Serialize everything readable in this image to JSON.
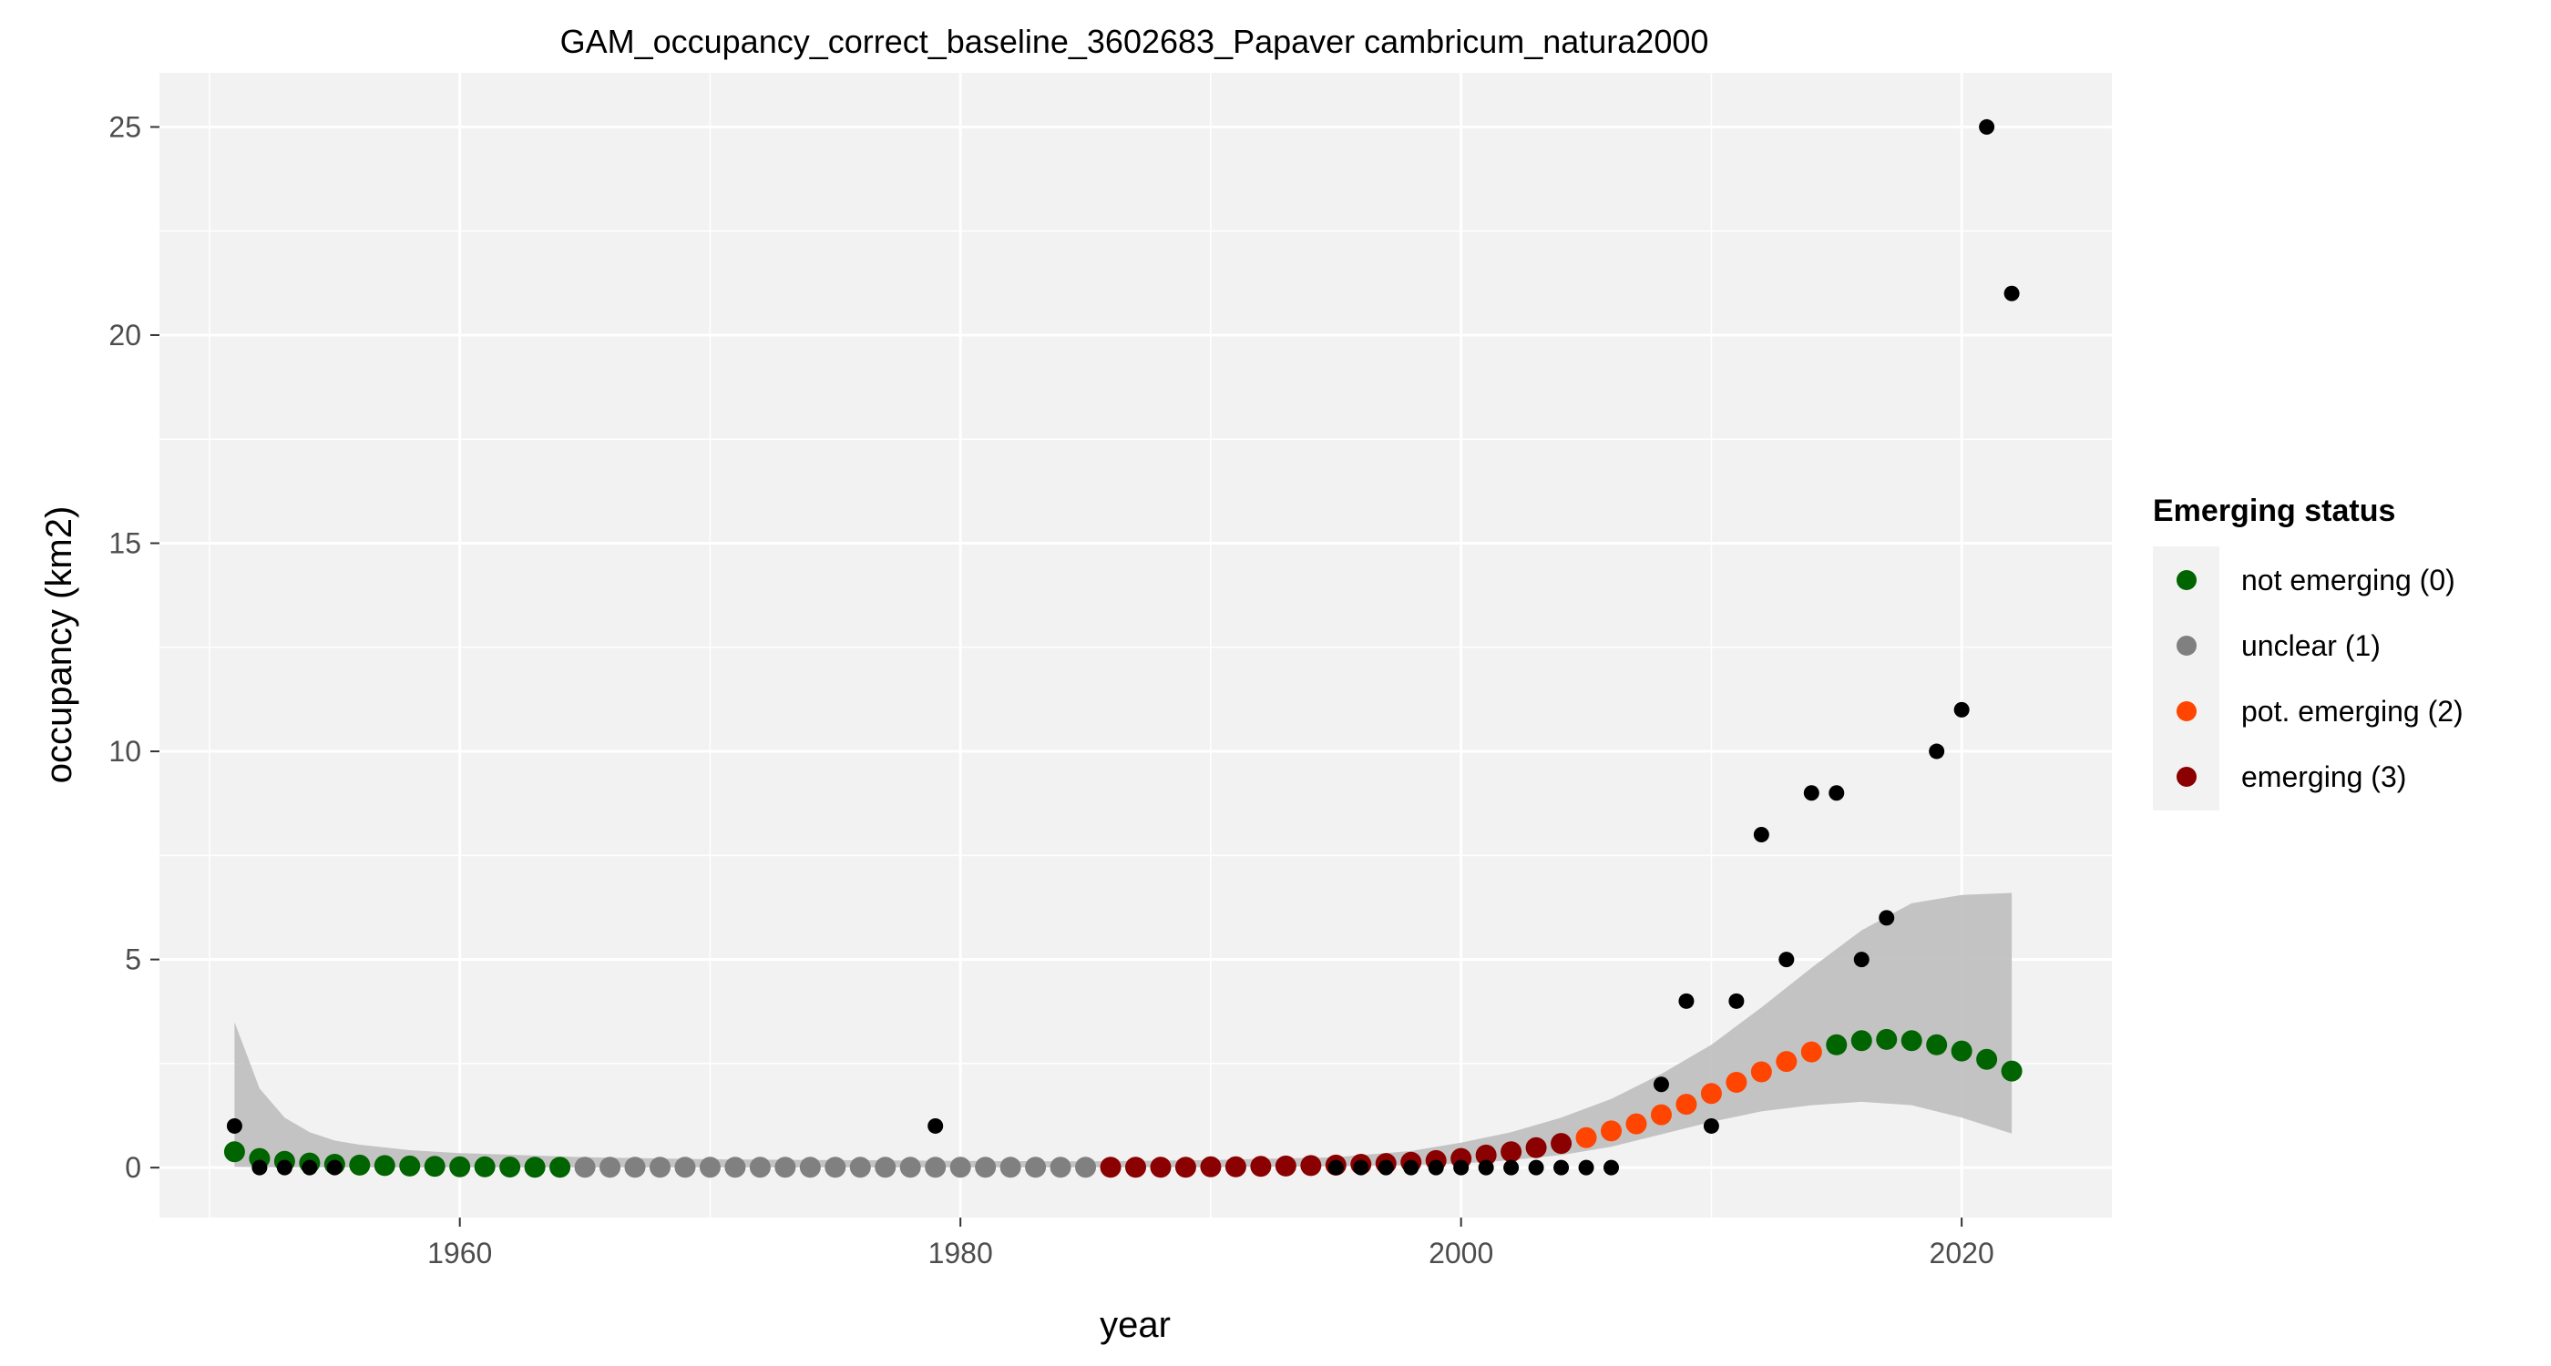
{
  "chart_data": {
    "type": "scatter",
    "title": "GAM_occupancy_correct_baseline_3602683_Papaver cambricum_natura2000",
    "xlabel": "year",
    "ylabel": "occupancy (km2)",
    "xlim": [
      1948,
      2026
    ],
    "ylim": [
      -1.2,
      26.3
    ],
    "x_ticks": [
      1960,
      1980,
      2000,
      2020
    ],
    "y_ticks": [
      0,
      5,
      10,
      15,
      20,
      25
    ],
    "grid": true,
    "legend": {
      "title": "Emerging status",
      "placement": "right",
      "entries": [
        {
          "label": "not emerging (0)",
          "color": "#006400"
        },
        {
          "label": "unclear (1)",
          "color": "#808080"
        },
        {
          "label": "pot. emerging (2)",
          "color": "#FF4500"
        },
        {
          "label": "emerging (3)",
          "color": "#8B0000"
        }
      ]
    },
    "observed": {
      "color": "#000000",
      "points": [
        [
          1951,
          1
        ],
        [
          1952,
          0
        ],
        [
          1953,
          0
        ],
        [
          1954,
          0
        ],
        [
          1955,
          0
        ],
        [
          1979,
          1
        ],
        [
          1995,
          0
        ],
        [
          1996,
          0
        ],
        [
          1997,
          0
        ],
        [
          1998,
          0
        ],
        [
          1999,
          0
        ],
        [
          2000,
          0
        ],
        [
          2001,
          0
        ],
        [
          2002,
          0
        ],
        [
          2003,
          0
        ],
        [
          2004,
          0
        ],
        [
          2005,
          0
        ],
        [
          2006,
          0
        ],
        [
          2008,
          2
        ],
        [
          2009,
          4
        ],
        [
          2010,
          1
        ],
        [
          2011,
          4
        ],
        [
          2012,
          8
        ],
        [
          2013,
          5
        ],
        [
          2014,
          9
        ],
        [
          2015,
          9
        ],
        [
          2016,
          5
        ],
        [
          2017,
          6
        ],
        [
          2019,
          10
        ],
        [
          2020,
          11
        ],
        [
          2021,
          25
        ],
        [
          2022,
          21
        ]
      ]
    },
    "fitted": {
      "years": [
        1951,
        1952,
        1953,
        1954,
        1955,
        1956,
        1957,
        1958,
        1959,
        1960,
        1961,
        1962,
        1963,
        1964,
        1965,
        1966,
        1967,
        1968,
        1969,
        1970,
        1971,
        1972,
        1973,
        1974,
        1975,
        1976,
        1977,
        1978,
        1979,
        1980,
        1981,
        1982,
        1983,
        1984,
        1985,
        1986,
        1987,
        1988,
        1989,
        1990,
        1991,
        1992,
        1993,
        1994,
        1995,
        1996,
        1997,
        1998,
        1999,
        2000,
        2001,
        2002,
        2003,
        2004,
        2005,
        2006,
        2007,
        2008,
        2009,
        2010,
        2011,
        2012,
        2013,
        2014,
        2015,
        2016,
        2017,
        2018,
        2019,
        2020,
        2021,
        2022
      ],
      "values": [
        0.38,
        0.22,
        0.15,
        0.11,
        0.08,
        0.06,
        0.05,
        0.04,
        0.03,
        0.02,
        0.02,
        0.015,
        0.01,
        0.01,
        0.01,
        0.01,
        0.01,
        0.01,
        0.01,
        0.01,
        0.01,
        0.01,
        0.01,
        0.01,
        0.01,
        0.01,
        0.01,
        0.01,
        0.01,
        0.01,
        0.01,
        0.01,
        0.01,
        0.01,
        0.01,
        0.01,
        0.01,
        0.01,
        0.01,
        0.02,
        0.02,
        0.03,
        0.04,
        0.05,
        0.06,
        0.08,
        0.1,
        0.13,
        0.17,
        0.22,
        0.3,
        0.38,
        0.48,
        0.58,
        0.72,
        0.88,
        1.05,
        1.27,
        1.52,
        1.78,
        2.05,
        2.3,
        2.55,
        2.78,
        2.95,
        3.05,
        3.08,
        3.05,
        2.95,
        2.8,
        2.6,
        2.32
      ],
      "status": [
        0,
        0,
        0,
        0,
        0,
        0,
        0,
        0,
        0,
        0,
        0,
        0,
        0,
        0,
        1,
        1,
        1,
        1,
        1,
        1,
        1,
        1,
        1,
        1,
        1,
        1,
        1,
        1,
        1,
        1,
        1,
        1,
        1,
        1,
        1,
        3,
        3,
        3,
        3,
        3,
        3,
        3,
        3,
        3,
        3,
        3,
        3,
        3,
        3,
        3,
        3,
        3,
        3,
        3,
        2,
        2,
        2,
        2,
        2,
        2,
        2,
        2,
        2,
        2,
        0,
        0,
        0,
        0,
        0,
        0,
        0,
        0
      ]
    },
    "confidence_band": {
      "color": "#bebebe",
      "years": [
        1951,
        1952,
        1953,
        1954,
        1955,
        1956,
        1958,
        1960,
        1965,
        1970,
        1975,
        1980,
        1985,
        1990,
        1995,
        1998,
        2000,
        2002,
        2004,
        2006,
        2008,
        2010,
        2012,
        2014,
        2016,
        2018,
        2020,
        2022
      ],
      "lower": [
        0.02,
        0.01,
        0.01,
        0.01,
        0.005,
        0.005,
        0.005,
        0.005,
        0.005,
        0.005,
        0.005,
        0.005,
        0.005,
        0.01,
        0.03,
        0.06,
        0.1,
        0.18,
        0.3,
        0.5,
        0.8,
        1.1,
        1.35,
        1.5,
        1.58,
        1.5,
        1.2,
        0.82
      ],
      "upper": [
        3.5,
        1.9,
        1.2,
        0.85,
        0.65,
        0.55,
        0.42,
        0.35,
        0.25,
        0.2,
        0.18,
        0.16,
        0.15,
        0.18,
        0.25,
        0.4,
        0.6,
        0.85,
        1.2,
        1.65,
        2.25,
        2.95,
        3.85,
        4.8,
        5.7,
        6.35,
        6.55,
        6.6
      ]
    }
  }
}
